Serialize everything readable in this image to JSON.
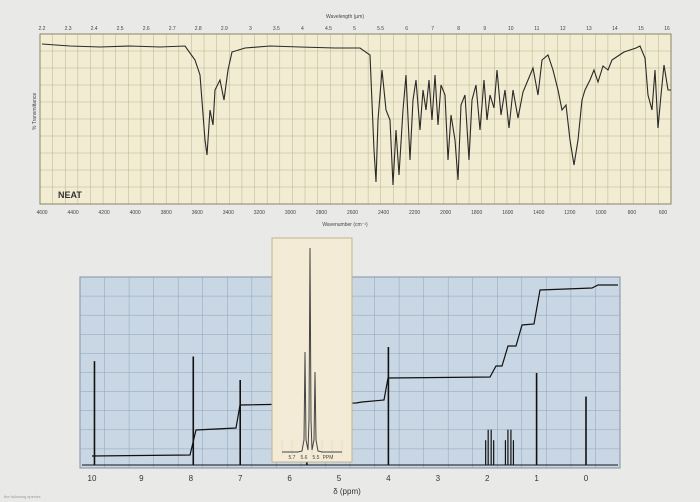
{
  "ir": {
    "top_axis_title": "Wavelength (μm)",
    "top_ticks": [
      "2.2",
      "2.3",
      "2.4",
      "2.5",
      "2.6",
      "2.7",
      "2.8",
      "2.9",
      "3",
      "3.5",
      "4",
      "4.5",
      "5",
      "5.5",
      "6",
      "7",
      "8",
      "9",
      "10",
      "11",
      "12",
      "13",
      "14",
      "15",
      "16"
    ],
    "bottom_axis_title": "Wavenumber (cm⁻¹)",
    "bottom_ticks": [
      "4600",
      "4400",
      "4200",
      "4000",
      "3800",
      "3600",
      "3400",
      "3200",
      "3000",
      "2800",
      "2600",
      "2400",
      "2200",
      "2000",
      "1800",
      "1600",
      "1400",
      "1200",
      "1000",
      "800",
      "600"
    ],
    "y_label": "% Transmittance",
    "sample_label": "NEAT",
    "colors": {
      "paper": "#f2ecd2",
      "grid": "#b9b390",
      "line": "#2a2a28"
    }
  },
  "nmr": {
    "xlabel": "δ (ppm)",
    "x_ticks": [
      "10",
      "9",
      "8",
      "7",
      "6",
      "5",
      "4",
      "3",
      "2",
      "1",
      "0"
    ],
    "colors": {
      "panel": "#c9d7e4",
      "grid": "#8ea3b8",
      "line": "#111111",
      "inset_bg": "#f3ebd6",
      "inset_border": "#c2b68a"
    },
    "inset_ticks": [
      "5.7",
      "5.6",
      "5.5",
      "PPM"
    ],
    "peaks": [
      {
        "ppm": 9.95,
        "height": 0.88
      },
      {
        "ppm": 7.95,
        "height": 0.92
      },
      {
        "ppm": 7.0,
        "height": 0.72
      },
      {
        "ppm": 5.65,
        "height": 0.48
      },
      {
        "ppm": 4.0,
        "height": 1.0
      },
      {
        "ppm": 1.95,
        "height": 0.3
      },
      {
        "ppm": 1.55,
        "height": 0.3
      },
      {
        "ppm": 1.0,
        "height": 0.78
      },
      {
        "ppm": 0.0,
        "height": 0.58
      }
    ]
  },
  "caption": "the following spectra"
}
